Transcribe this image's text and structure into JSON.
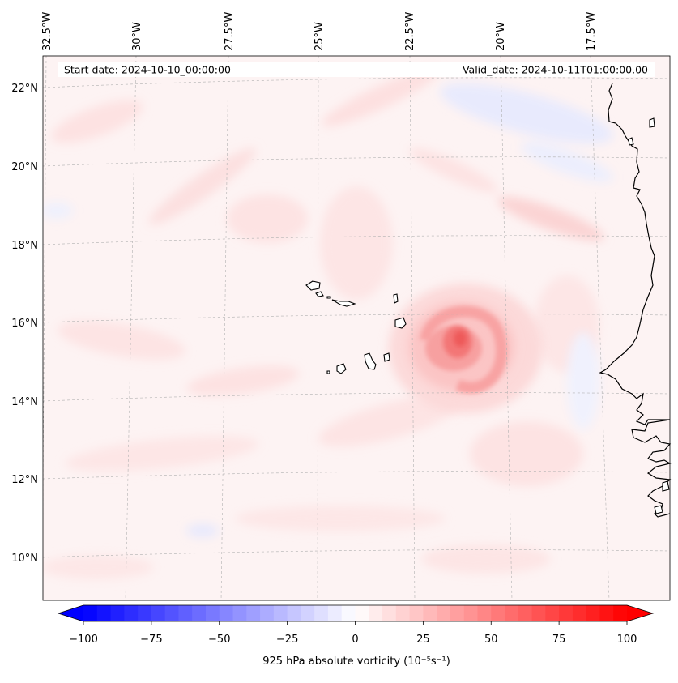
{
  "header": {
    "start_date": "Start date: 2024-10-10_00:00:00",
    "valid_date": "Valid_date: 2024-10-11T01:00:00.00"
  },
  "map": {
    "longitude_labels": [
      "32.5°W",
      "30°W",
      "27.5°W",
      "25°W",
      "22.5°W",
      "20°W",
      "17.5°W"
    ],
    "latitude_labels": [
      "22°N",
      "20°N",
      "18°N",
      "16°N",
      "14°N",
      "12°N",
      "10°N"
    ],
    "gridlines": true,
    "colormap": "bwr",
    "vortex_center": {
      "lon": -21.3,
      "lat": 15.2
    }
  },
  "colorbar": {
    "label": "925 hPa absolute vorticity (10⁻⁵s⁻¹)",
    "ticks": [
      "−100",
      "−75",
      "−50",
      "−25",
      "0",
      "25",
      "50",
      "75",
      "100"
    ],
    "min": -100,
    "max": 100,
    "step": 5,
    "extend": "both",
    "negative_color": "#0000ff",
    "zero_color": "#ffffff",
    "positive_color": "#ff0000"
  }
}
